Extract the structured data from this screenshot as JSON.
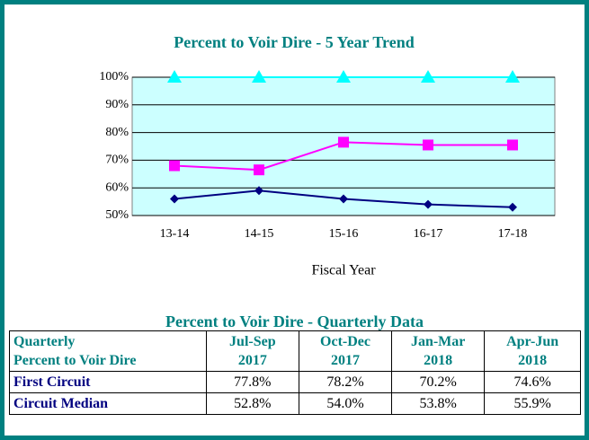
{
  "chart_data": {
    "type": "line",
    "title": "Percent to Voir Dire - 5 Year Trend",
    "xlabel": "Fiscal Year",
    "categories": [
      "13-14",
      "14-15",
      "15-16",
      "16-17",
      "17-18"
    ],
    "series": [
      {
        "color": "#000080",
        "marker": "diamond",
        "values": [
          56,
          59,
          56,
          54,
          53
        ]
      },
      {
        "color": "#ff00ff",
        "marker": "square",
        "values": [
          68,
          66.5,
          76.5,
          75.5,
          75.5
        ]
      },
      {
        "color": "#00ffff",
        "marker": "triangle",
        "values": [
          100,
          100,
          100,
          100,
          100
        ]
      }
    ],
    "ylim": [
      50,
      100
    ],
    "yticks": [
      {
        "value": 50,
        "label": "50%"
      },
      {
        "value": 60,
        "label": "60%"
      },
      {
        "value": 70,
        "label": "70%"
      },
      {
        "value": 80,
        "label": "80%"
      },
      {
        "value": 90,
        "label": "90%"
      },
      {
        "value": 100,
        "label": "100%"
      }
    ],
    "grid": true
  },
  "table": {
    "title": "Percent to Voir Dire - Quarterly Data",
    "header": [
      [
        "Quarterly",
        "Percent to Voir Dire"
      ],
      [
        "Jul-Sep",
        "2017"
      ],
      [
        "Oct-Dec",
        "2017"
      ],
      [
        "Jan-Mar",
        "2018"
      ],
      [
        "Apr-Jun",
        "2018"
      ]
    ],
    "rows": [
      [
        "First Circuit",
        "77.8%",
        "78.2%",
        "70.2%",
        "74.6%"
      ],
      [
        "Circuit Median",
        "52.8%",
        "54.0%",
        "53.8%",
        "55.9%"
      ]
    ]
  }
}
